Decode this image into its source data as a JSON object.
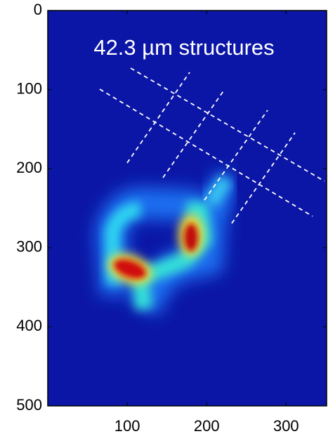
{
  "chart_data": {
    "type": "heatmap",
    "annotation": "42.3 µm structures",
    "xlim": [
      0,
      351
    ],
    "xticks": [
      100,
      200,
      300
    ],
    "ylim": [
      0,
      500
    ],
    "yticks": [
      0,
      100,
      200,
      300,
      400,
      500
    ],
    "y_inverted": true
  }
}
